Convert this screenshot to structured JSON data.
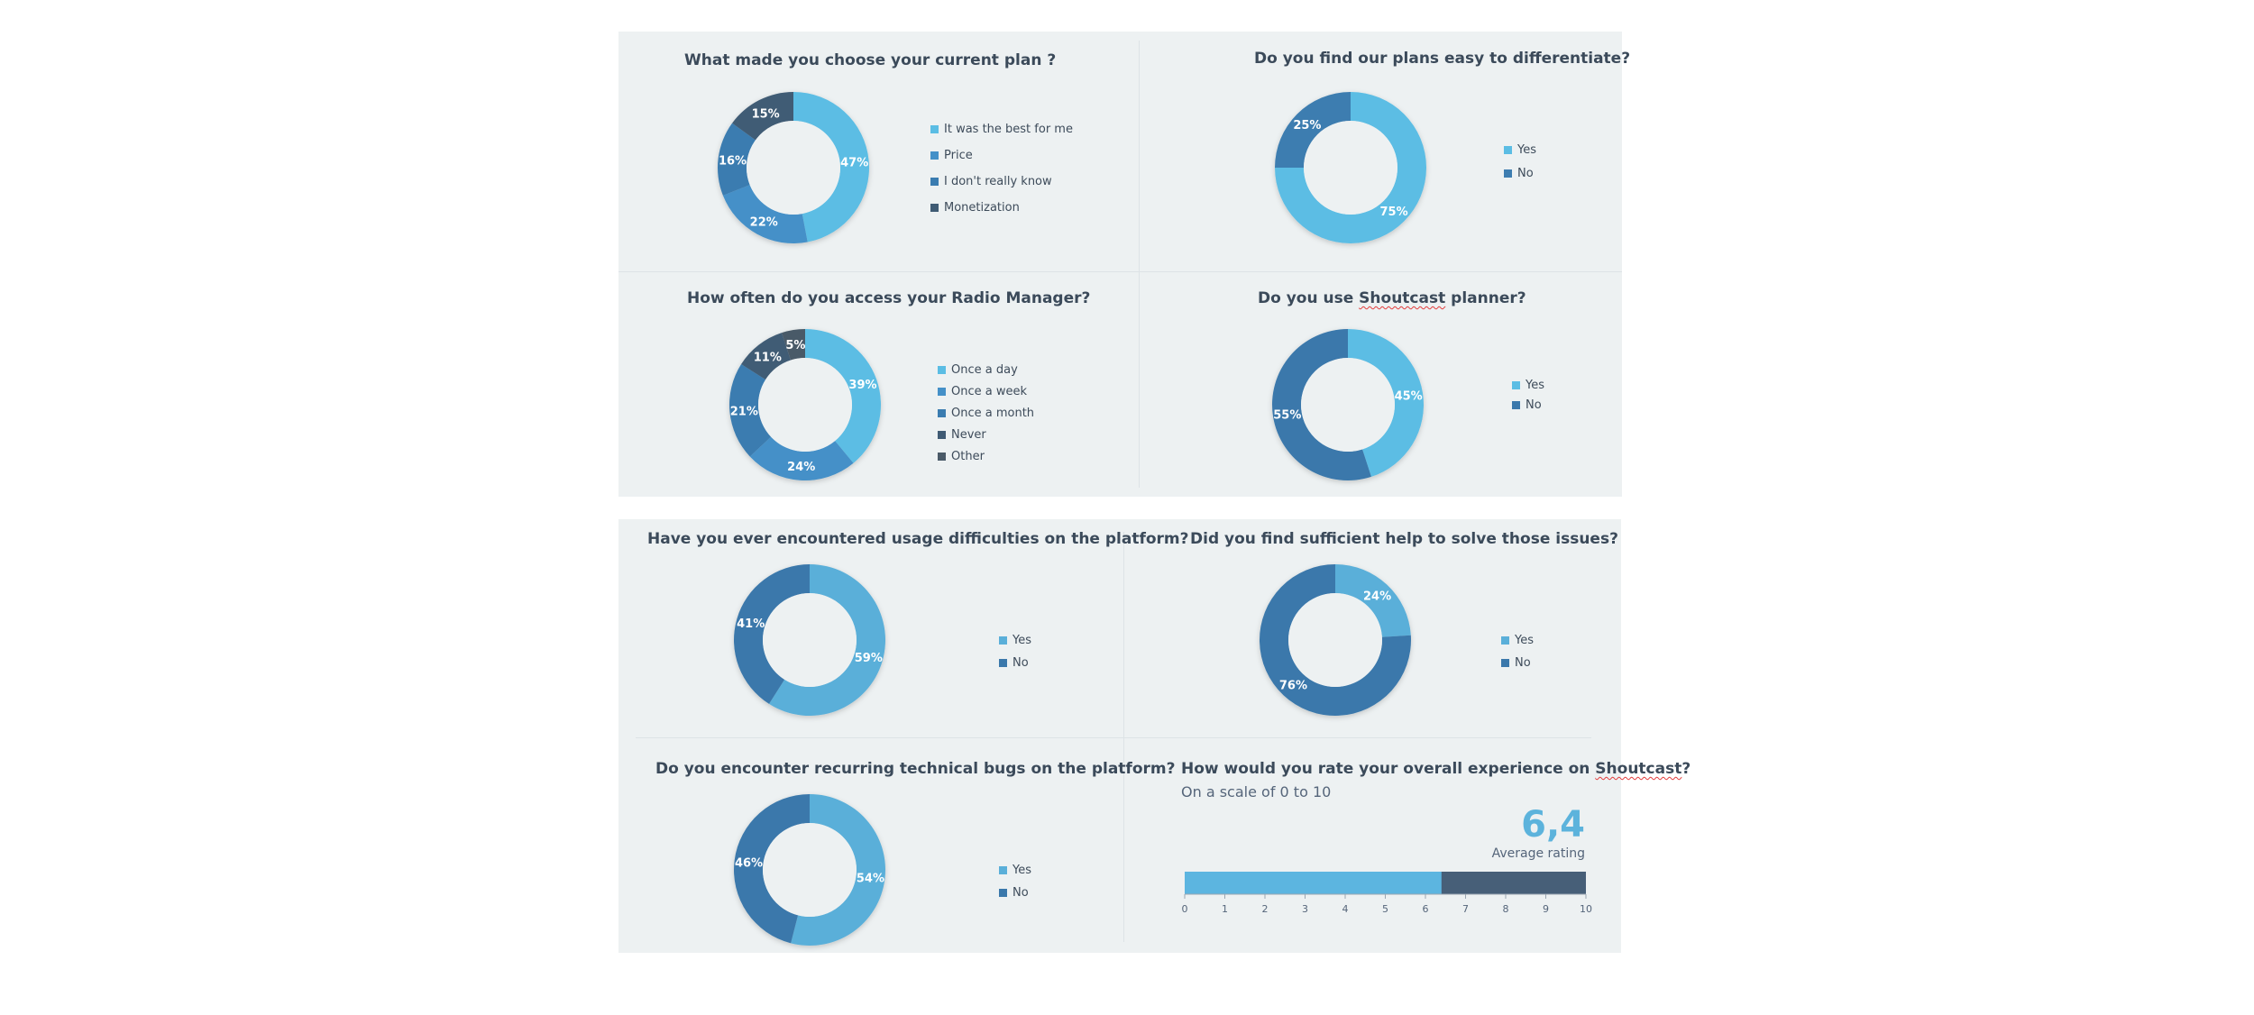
{
  "colors": {
    "light_blue": "#5bbde4",
    "mid_blue": "#4490c8",
    "blue": "#3a7cb0",
    "dark_blue": "#3d6f9b",
    "slate": "#3f5b74",
    "bar_fill": "#5cb5e0",
    "bar_rest": "#475f78"
  },
  "chart_data": [
    {
      "type": "pie",
      "title": "What made you choose your current plan ?",
      "categories": [
        "It was the best for me",
        "Price",
        "I don't really know",
        "Monetization"
      ],
      "values": [
        47,
        22,
        16,
        15
      ],
      "labels": [
        "47%",
        "22%",
        "16%",
        "15%"
      ],
      "colors": [
        "#5bbde4",
        "#4490c8",
        "#3a7cb0",
        "#3f5b74"
      ]
    },
    {
      "type": "pie",
      "title": "Do you find our plans easy to differentiate?",
      "categories": [
        "Yes",
        "No"
      ],
      "values": [
        75,
        25
      ],
      "labels": [
        "75%",
        "25%"
      ],
      "colors": [
        "#5bbde4",
        "#3d7db0"
      ]
    },
    {
      "type": "pie",
      "title": "How often do you access your Radio Manager?",
      "categories": [
        "Once a day",
        "Once a week",
        "Once a month",
        "Never",
        "Other"
      ],
      "values": [
        39,
        24,
        21,
        11,
        5
      ],
      "labels": [
        "39%",
        "24%",
        "21%",
        "11%",
        "5%"
      ],
      "colors": [
        "#5bbde4",
        "#4490c8",
        "#3a7cb0",
        "#3f5b74",
        "#4a5a68"
      ]
    },
    {
      "type": "pie",
      "title": "Do you use Shoutcast planner?",
      "title_pre": "Do you use ",
      "title_flag": "Shoutcast",
      "title_post": " planner?",
      "categories": [
        "Yes",
        "No"
      ],
      "values": [
        45,
        55
      ],
      "labels": [
        "45%",
        "55%"
      ],
      "colors": [
        "#5bbde4",
        "#3a78ab"
      ]
    },
    {
      "type": "pie",
      "title": "Have you ever encountered usage difficulties on the platform?",
      "categories": [
        "Yes",
        "No"
      ],
      "values": [
        59,
        41
      ],
      "labels": [
        "59%",
        "41%"
      ],
      "colors": [
        "#5aafd9",
        "#3a78ab"
      ]
    },
    {
      "type": "pie",
      "title": "Did you find sufficient help to solve those issues?",
      "categories": [
        "Yes",
        "No"
      ],
      "values": [
        24,
        76
      ],
      "labels": [
        "24%",
        "76%"
      ],
      "colors": [
        "#5aafd9",
        "#3a78ab"
      ]
    },
    {
      "type": "pie",
      "title": "Do you encounter recurring technical bugs on the platform?",
      "categories": [
        "Yes",
        "No"
      ],
      "values": [
        54,
        46
      ],
      "labels": [
        "54%",
        "46%"
      ],
      "colors": [
        "#5aafd9",
        "#3a78ab"
      ]
    },
    {
      "type": "bar",
      "title": "How would you rate your overall experience on Shoutcast?",
      "title_pre": "How would you rate your overall experience on ",
      "title_flag": "Shoutcast",
      "title_post": "?",
      "subtitle": "On a scale of 0 to 10",
      "value": 6.4,
      "value_text": "6,4",
      "value_label": "Average rating",
      "xlim": [
        0,
        10
      ],
      "ticks": [
        "0",
        "1",
        "2",
        "3",
        "4",
        "5",
        "6",
        "7",
        "8",
        "9",
        "10"
      ]
    }
  ]
}
